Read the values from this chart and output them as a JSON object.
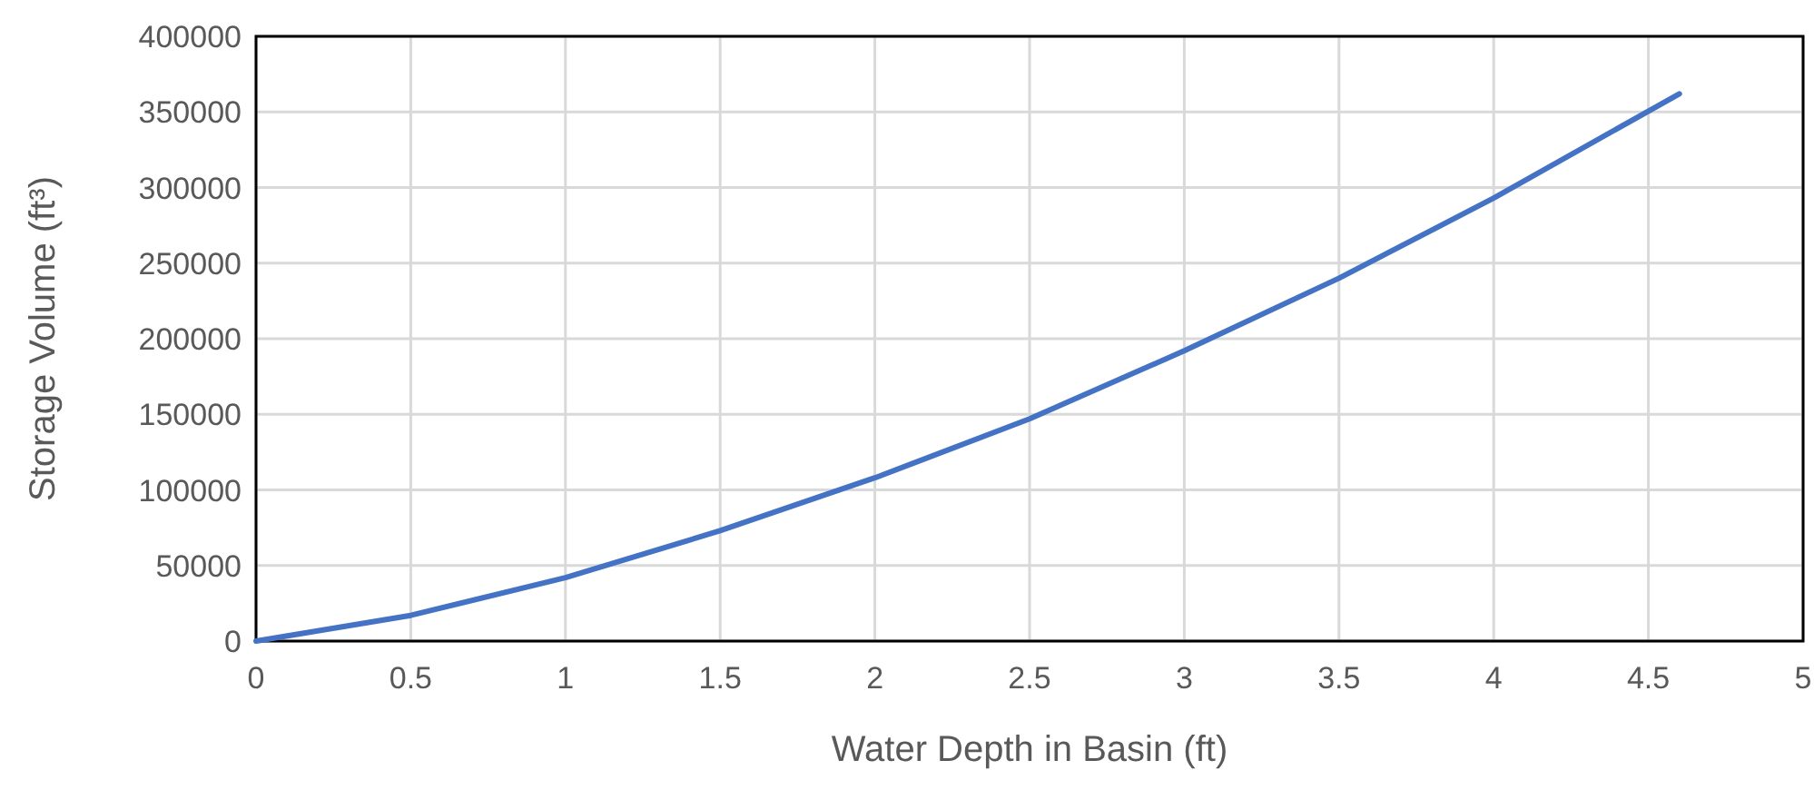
{
  "chart_data": {
    "type": "line",
    "xlabel": "Water Depth in Basin (ft)",
    "ylabel": "Storage Volume (ft³)",
    "x": [
      0,
      0.5,
      1,
      1.5,
      2,
      2.5,
      3,
      3.5,
      4,
      4.6
    ],
    "series": [
      {
        "color": "#4472c4",
        "values": [
          0,
          17000,
          42000,
          73000,
          108000,
          147000,
          192000,
          240000,
          293000,
          362000
        ]
      }
    ],
    "xlim": [
      0,
      5
    ],
    "xticks": [
      0,
      0.5,
      1,
      1.5,
      2,
      2.5,
      3,
      3.5,
      4,
      4.5,
      5
    ],
    "ylim": [
      0,
      400000
    ],
    "yticks": [
      0,
      50000,
      100000,
      150000,
      200000,
      250000,
      300000,
      350000,
      400000
    ],
    "grid": true,
    "marker": "none",
    "line_style": "solid"
  }
}
